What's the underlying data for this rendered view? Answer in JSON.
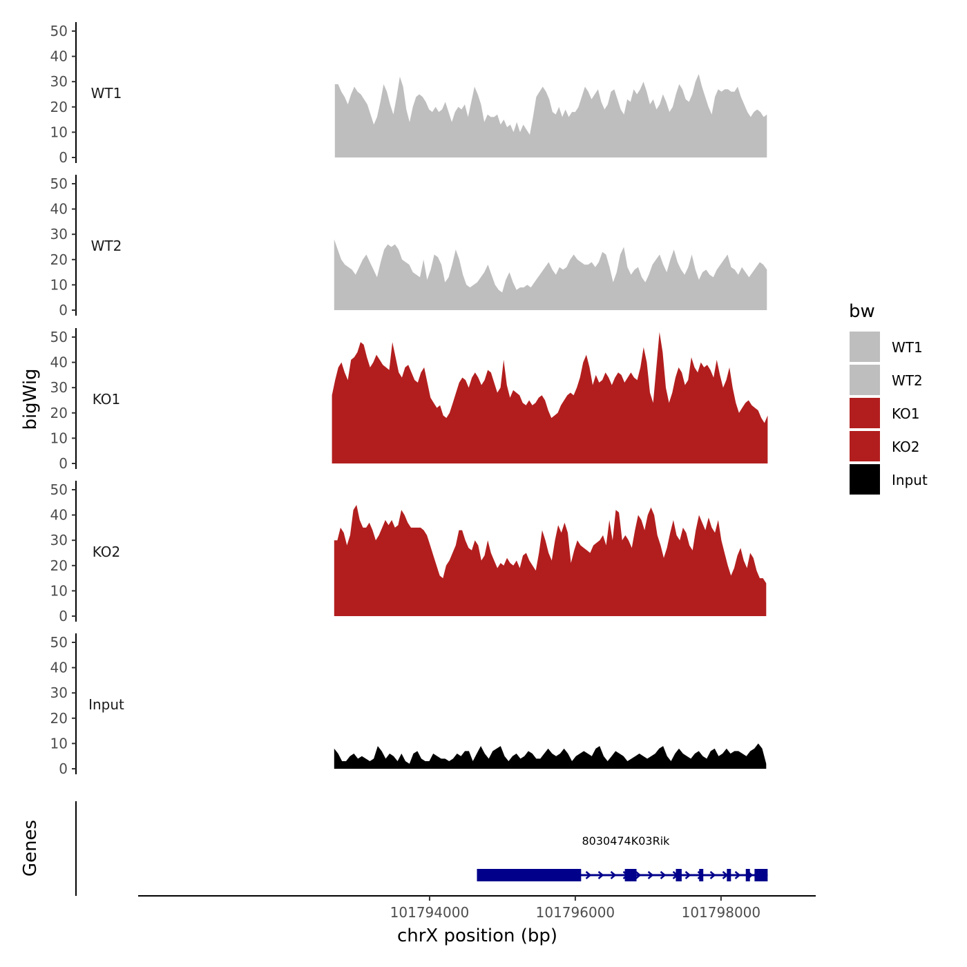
{
  "chart_data": {
    "type": "area",
    "title": "",
    "ylabel": "bigWig",
    "xlabel": "chrX position (bp)",
    "ylim": [
      0,
      50
    ],
    "y_ticks": [
      "0",
      "10",
      "20",
      "30",
      "40",
      "50"
    ],
    "xlim": [
      101790000,
      101799300
    ],
    "x_ticks": [
      {
        "value": 101794000,
        "label": "101794000"
      },
      {
        "value": 101796000,
        "label": "101796000"
      },
      {
        "value": 101798000,
        "label": "101798000"
      }
    ],
    "legend": {
      "title": "bw",
      "position": "right"
    },
    "series": [
      {
        "name": "WT1",
        "color": "#bebebe",
        "x_start": 101792700,
        "x_end": 101798630,
        "values": [
          29,
          29,
          26,
          24,
          21,
          25,
          28,
          26,
          25,
          23,
          21,
          17,
          13,
          16,
          22,
          29,
          26,
          21,
          17,
          24,
          32,
          28,
          19,
          14,
          20,
          24,
          25,
          24,
          22,
          19,
          18,
          20,
          18,
          19,
          22,
          18,
          14,
          18,
          20,
          19,
          21,
          16,
          22,
          28,
          25,
          21,
          14,
          17,
          16,
          16,
          17,
          13,
          15,
          12,
          13,
          10,
          14,
          10,
          13,
          11,
          9,
          16,
          24,
          26,
          28,
          26,
          23,
          18,
          17,
          20,
          16,
          19,
          16,
          18,
          18,
          20,
          24,
          28,
          26,
          23,
          25,
          27,
          22,
          19,
          21,
          26,
          27,
          23,
          19,
          17,
          23,
          22,
          27,
          25,
          27,
          30,
          26,
          21,
          23,
          19,
          21,
          25,
          22,
          18,
          20,
          25,
          29,
          27,
          23,
          22,
          25,
          30,
          33,
          28,
          24,
          20,
          17,
          24,
          27,
          26,
          27,
          27,
          26,
          26,
          28,
          24,
          21,
          18,
          16,
          18,
          19,
          18,
          16,
          17
        ]
      },
      {
        "name": "WT2",
        "color": "#bebebe",
        "x_start": 101792690,
        "x_end": 101798630,
        "values": [
          28,
          24,
          20,
          18,
          17,
          16,
          14,
          17,
          20,
          22,
          19,
          16,
          13,
          19,
          24,
          26,
          25,
          26,
          24,
          20,
          19,
          18,
          15,
          14,
          13,
          20,
          12,
          16,
          22,
          21,
          18,
          11,
          13,
          18,
          24,
          20,
          14,
          10,
          9,
          10,
          11,
          13,
          15,
          18,
          14,
          10,
          8,
          7,
          12,
          15,
          11,
          8,
          9,
          9,
          10,
          9,
          11,
          13,
          15,
          17,
          19,
          16,
          14,
          17,
          16,
          17,
          20,
          22,
          20,
          19,
          18,
          18,
          19,
          17,
          19,
          23,
          22,
          17,
          11,
          15,
          22,
          25,
          17,
          14,
          16,
          17,
          13,
          11,
          14,
          18,
          20,
          22,
          18,
          15,
          20,
          24,
          19,
          16,
          14,
          17,
          22,
          16,
          12,
          15,
          16,
          14,
          13,
          16,
          18,
          20,
          22,
          17,
          16,
          14,
          17,
          15,
          13,
          15,
          17,
          19,
          18,
          16
        ]
      },
      {
        "name": "KO1",
        "color": "#b21e1e",
        "x_start": 101792660,
        "x_end": 101798640,
        "values": [
          27,
          33,
          38,
          40,
          36,
          33,
          41,
          42,
          44,
          48,
          47,
          42,
          38,
          40,
          43,
          41,
          39,
          38,
          37,
          48,
          42,
          36,
          34,
          38,
          39,
          36,
          33,
          32,
          36,
          38,
          32,
          26,
          24,
          22,
          23,
          19,
          18,
          20,
          24,
          28,
          32,
          34,
          33,
          30,
          34,
          36,
          34,
          31,
          33,
          37,
          36,
          32,
          28,
          30,
          41,
          31,
          26,
          29,
          28,
          27,
          24,
          23,
          25,
          23,
          24,
          26,
          27,
          25,
          21,
          18,
          19,
          20,
          23,
          25,
          27,
          28,
          27,
          30,
          34,
          40,
          43,
          38,
          31,
          35,
          32,
          33,
          36,
          34,
          31,
          34,
          36,
          35,
          32,
          34,
          36,
          34,
          33,
          38,
          46,
          40,
          28,
          24,
          38,
          52,
          44,
          30,
          24,
          28,
          34,
          38,
          36,
          31,
          33,
          42,
          38,
          36,
          40,
          38,
          39,
          37,
          34,
          41,
          35,
          30,
          33,
          38,
          30,
          24,
          20,
          22,
          24,
          25,
          23,
          22,
          21,
          18,
          16,
          19
        ]
      },
      {
        "name": "KO2",
        "color": "#b21e1e",
        "x_start": 101792690,
        "x_end": 101798620,
        "values": [
          30,
          30,
          35,
          33,
          28,
          32,
          42,
          44,
          38,
          35,
          35,
          37,
          34,
          30,
          32,
          35,
          38,
          36,
          38,
          35,
          36,
          42,
          40,
          37,
          35,
          35,
          35,
          35,
          34,
          32,
          28,
          24,
          20,
          16,
          15,
          20,
          22,
          25,
          28,
          34,
          34,
          30,
          27,
          26,
          30,
          28,
          22,
          24,
          30,
          25,
          22,
          19,
          21,
          20,
          23,
          21,
          20,
          22,
          19,
          24,
          25,
          22,
          20,
          18,
          25,
          34,
          30,
          25,
          22,
          30,
          36,
          33,
          37,
          33,
          21,
          26,
          30,
          28,
          27,
          26,
          25,
          28,
          29,
          30,
          32,
          28,
          38,
          30,
          42,
          41,
          30,
          32,
          30,
          27,
          34,
          40,
          38,
          34,
          40,
          43,
          40,
          32,
          28,
          23,
          27,
          33,
          38,
          32,
          30,
          35,
          33,
          28,
          26,
          34,
          40,
          37,
          34,
          39,
          35,
          33,
          38,
          30,
          25,
          20,
          16,
          19,
          24,
          27,
          22,
          19,
          25,
          23,
          18,
          15,
          15,
          13
        ]
      },
      {
        "name": "Input",
        "color": "#000000",
        "x_start": 101792690,
        "x_end": 101798620,
        "values": [
          8,
          6,
          3,
          3,
          5,
          6,
          4,
          5,
          4,
          3,
          4,
          9,
          7,
          4,
          6,
          5,
          3,
          6,
          3,
          2,
          6,
          7,
          4,
          3,
          3,
          6,
          5,
          4,
          4,
          3,
          4,
          6,
          5,
          7,
          7,
          3,
          6,
          9,
          6,
          4,
          7,
          8,
          9,
          5,
          3,
          5,
          6,
          4,
          5,
          7,
          6,
          4,
          4,
          6,
          8,
          6,
          5,
          6,
          8,
          6,
          3,
          5,
          6,
          7,
          6,
          5,
          8,
          9,
          5,
          3,
          5,
          7,
          6,
          5,
          3,
          4,
          5,
          6,
          5,
          4,
          5,
          6,
          8,
          9,
          5,
          3,
          6,
          8,
          6,
          5,
          4,
          6,
          7,
          5,
          4,
          7,
          8,
          5,
          6,
          8,
          6,
          7,
          7,
          6,
          5,
          7,
          8,
          10,
          8,
          2
        ]
      }
    ],
    "gene_track": {
      "label": "Genes",
      "gene_name": "8030474K03Rik",
      "color": "#00008b",
      "start": 101794650,
      "end": 101798640,
      "strand": "+",
      "exons": [
        [
          101794650,
          101796080
        ],
        [
          101796680,
          101796840
        ],
        [
          101797380,
          101797460
        ],
        [
          101797700,
          101797740
        ],
        [
          101798080,
          101798130
        ],
        [
          101798340,
          101798380
        ],
        [
          101798460,
          101798640
        ]
      ]
    }
  }
}
